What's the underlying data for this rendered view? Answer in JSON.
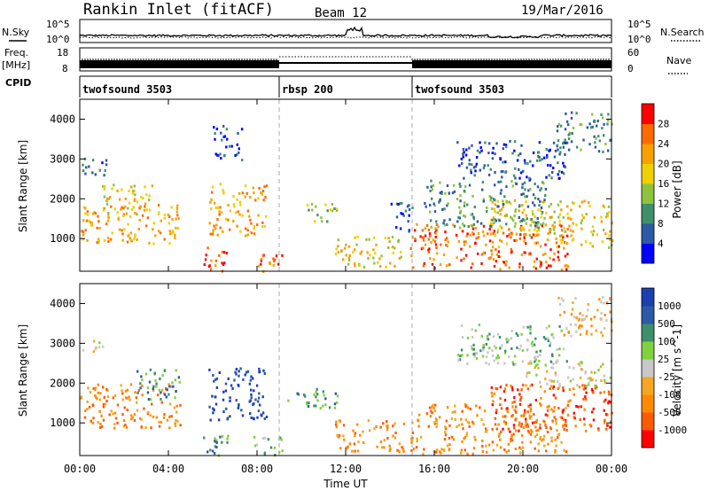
{
  "chart_data": [
    {
      "type": "heatmap",
      "header": {
        "site": "Rankin Inlet (fitACF)",
        "beam": "Beam 12",
        "date": "19/Mar/2016"
      },
      "top_panels": {
        "noise_left_label": "N.Sky",
        "noise_right_label": "N.Search",
        "noise_ticks_left": [
          "10^5",
          "10^0"
        ],
        "noise_ticks_right": [
          "10^5",
          "10^0"
        ],
        "freq_label_1": "Freq.",
        "freq_label_2": "[MHz]",
        "freq_ticks": [
          "18",
          "8"
        ],
        "nave_label": "Nave",
        "nave_ticks": [
          "60",
          "0"
        ],
        "cpid_label": "CPID",
        "cpid_segments": [
          {
            "name": "twofsound 3503",
            "start_hour": 0,
            "end_hour": 9
          },
          {
            "name": "rbsp 200",
            "start_hour": 9,
            "end_hour": 15
          },
          {
            "name": "twofsound 3503",
            "start_hour": 15,
            "end_hour": 24
          }
        ]
      },
      "x_axis": {
        "label": "Time UT",
        "ticks": [
          "00:00",
          "04:00",
          "08:00",
          "12:00",
          "16:00",
          "20:00",
          "00:00"
        ],
        "range_hours": [
          0,
          24
        ]
      },
      "y_axis": {
        "label": "Slant Range [km]",
        "ticks": [
          "1000",
          "2000",
          "3000",
          "4000"
        ],
        "range_km": [
          180,
          4500
        ]
      },
      "power_panel": {
        "colorbar_label": "Power [dB]",
        "colorbar_ticks": [
          "28",
          "24",
          "20",
          "16",
          "12",
          "8",
          "4"
        ],
        "colors": [
          "#0000ff",
          "#2c5aa6",
          "#3f8f6a",
          "#8fc23f",
          "#f0d000",
          "#f7a000",
          "#ff6a00",
          "#ff0000"
        ],
        "scatter_regions": [
          {
            "h": [
              0.0,
              4.5
            ],
            "r": [
              900,
              1900
            ],
            "level": 5
          },
          {
            "h": [
              1.0,
              3.3
            ],
            "r": [
              1600,
              2400
            ],
            "level": 4
          },
          {
            "h": [
              0.0,
              1.2
            ],
            "r": [
              2600,
              3100
            ],
            "level": 1
          },
          {
            "h": [
              5.8,
              8.4
            ],
            "r": [
              1100,
              2400
            ],
            "level": 5
          },
          {
            "h": [
              5.5,
              6.7
            ],
            "r": [
              200,
              800
            ],
            "level": 6
          },
          {
            "h": [
              7.8,
              9.1
            ],
            "r": [
              200,
              700
            ],
            "level": 6
          },
          {
            "h": [
              6.0,
              7.3
            ],
            "r": [
              3000,
              3900
            ],
            "level": 1
          },
          {
            "h": [
              10.2,
              11.6
            ],
            "r": [
              1400,
              1900
            ],
            "level": 3
          },
          {
            "h": [
              11.5,
              14.6
            ],
            "r": [
              300,
              1100
            ],
            "level": 4
          },
          {
            "h": [
              14.0,
              15.0
            ],
            "r": [
              1200,
              2000
            ],
            "level": 1
          },
          {
            "h": [
              14.9,
              22.0
            ],
            "r": [
              250,
              1400
            ],
            "level": 6
          },
          {
            "h": [
              18.5,
              24.0
            ],
            "r": [
              800,
              2000
            ],
            "level": 4
          },
          {
            "h": [
              15.5,
              21.0
            ],
            "r": [
              1300,
              2500
            ],
            "level": 2
          },
          {
            "h": [
              17.0,
              22.0
            ],
            "r": [
              2500,
              3500
            ],
            "level": 1
          },
          {
            "h": [
              21.5,
              24.0
            ],
            "r": [
              3200,
              4200
            ],
            "level": 2
          }
        ]
      },
      "velocity_panel": {
        "colorbar_label": "Velocity [m s^-1]",
        "colorbar_ticks": [
          "1000",
          "500",
          "100",
          "25",
          "-25",
          "-100",
          "-500",
          "-1000"
        ],
        "colors": [
          "#ff0000",
          "#ff5a00",
          "#ff8a00",
          "#f5a623",
          "#c8c8c8",
          "#7fd13f",
          "#3f8f6a",
          "#2c5aa6",
          "#1c3fb0"
        ],
        "scatter_regions": [
          {
            "h": [
              0.0,
              4.5
            ],
            "r": [
              900,
              2000
            ],
            "level": 2
          },
          {
            "h": [
              2.5,
              4.5
            ],
            "r": [
              1600,
              2400
            ],
            "level": 6
          },
          {
            "h": [
              0.0,
              1.0
            ],
            "r": [
              2800,
              3100
            ],
            "level": 4
          },
          {
            "h": [
              5.8,
              8.4
            ],
            "r": [
              1100,
              2400
            ],
            "level": 8
          },
          {
            "h": [
              5.5,
              6.7
            ],
            "r": [
              200,
              800
            ],
            "level": 6
          },
          {
            "h": [
              7.8,
              9.1
            ],
            "r": [
              200,
              700
            ],
            "level": 5
          },
          {
            "h": [
              9.3,
              11.6
            ],
            "r": [
              1400,
              1900
            ],
            "level": 6
          },
          {
            "h": [
              11.5,
              14.6
            ],
            "r": [
              300,
              1100
            ],
            "level": 2
          },
          {
            "h": [
              14.9,
              22.0
            ],
            "r": [
              250,
              1500
            ],
            "level": 2
          },
          {
            "h": [
              18.5,
              24.0
            ],
            "r": [
              800,
              2000
            ],
            "level": 1
          },
          {
            "h": [
              20.0,
              24.0
            ],
            "r": [
              1900,
              2600
            ],
            "level": 4
          },
          {
            "h": [
              17.0,
              22.0
            ],
            "r": [
              2500,
              3500
            ],
            "level": 5
          },
          {
            "h": [
              21.5,
              24.0
            ],
            "r": [
              3200,
              4200
            ],
            "level": 3
          }
        ]
      }
    }
  ]
}
